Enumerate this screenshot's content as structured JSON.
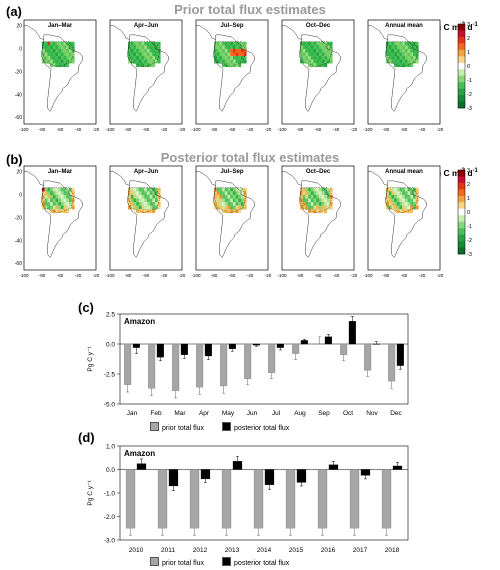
{
  "panel_labels": {
    "a": "(a)",
    "b": "(b)",
    "c": "(c)",
    "d": "(d)"
  },
  "row_titles": {
    "prior": "Prior total flux estimates",
    "posterior": "Posterior total flux estimates"
  },
  "unit": {
    "main": "g C m",
    "exp1": "-2",
    "mid": " d",
    "exp2": "-1"
  },
  "map_titles": [
    "Jan–Mar",
    "Apr–Jun",
    "Jul–Sep",
    "Oct–Dec",
    "Annual mean"
  ],
  "map_y_ticks": [
    "20",
    "0",
    "-20",
    "-40",
    "-60"
  ],
  "map_x_ticks": [
    "-100",
    "-80",
    "-60",
    "-40",
    "-20"
  ],
  "colorbar_ticks": [
    "3",
    "2",
    "1",
    "0",
    "-1",
    "-2",
    "-3"
  ],
  "colors": {
    "prior_bar": "#a6a6a6",
    "posterior_bar": "#000000",
    "title_gray": "#9a9a9a"
  },
  "chart_data": [
    {
      "type": "bar",
      "title": "Amazon",
      "ylabel": "Pg C y⁻¹",
      "ylim": [
        -5.0,
        2.5
      ],
      "yticks": [
        "2.5",
        "0.0",
        "-2.5",
        "-5.0"
      ],
      "categories": [
        "Jan",
        "Feb",
        "Mar",
        "Apr",
        "May",
        "Jun",
        "Jul",
        "Aug",
        "Sep",
        "Oct",
        "Nov",
        "Dec"
      ],
      "series": [
        {
          "name": "prior total flux",
          "values": [
            -3.4,
            -3.7,
            -3.9,
            -3.6,
            -3.5,
            -2.9,
            -2.4,
            -0.8,
            0.0,
            -0.9,
            -2.2,
            -3.1
          ],
          "errors": [
            0.6,
            0.6,
            0.6,
            0.6,
            0.6,
            0.5,
            0.5,
            0.5,
            0.6,
            0.5,
            0.5,
            0.6
          ]
        },
        {
          "name": "posterior total flux",
          "values": [
            -0.3,
            -1.1,
            -0.9,
            -1.0,
            -0.4,
            -0.1,
            -0.3,
            0.3,
            0.6,
            1.9,
            0.0,
            -1.8
          ],
          "errors": [
            0.5,
            0.3,
            0.3,
            0.3,
            0.2,
            0.1,
            0.2,
            0.1,
            0.2,
            0.4,
            0.2,
            0.3
          ]
        }
      ]
    },
    {
      "type": "bar",
      "title": "Amazon",
      "ylabel": "Pg C y⁻¹",
      "ylim": [
        -3.0,
        1.0
      ],
      "yticks": [
        "1.0",
        "0.0",
        "-1.0",
        "-2.0",
        "-3.0"
      ],
      "categories": [
        "2010",
        "2011",
        "2012",
        "2013",
        "2014",
        "2015",
        "2016",
        "2017",
        "2018"
      ],
      "series": [
        {
          "name": "prior total flux",
          "values": [
            -2.5,
            -2.5,
            -2.5,
            -2.5,
            -2.5,
            -2.5,
            -2.5,
            -2.5,
            -2.5
          ],
          "errors": [
            0.3,
            0.3,
            0.3,
            0.3,
            0.3,
            0.3,
            0.3,
            0.3,
            0.3
          ]
        },
        {
          "name": "posterior total flux",
          "values": [
            0.25,
            -0.7,
            -0.4,
            0.35,
            -0.65,
            -0.55,
            0.2,
            -0.25,
            0.15
          ],
          "errors": [
            0.2,
            0.2,
            0.15,
            0.2,
            0.2,
            0.15,
            0.15,
            0.15,
            0.15
          ]
        }
      ]
    }
  ]
}
